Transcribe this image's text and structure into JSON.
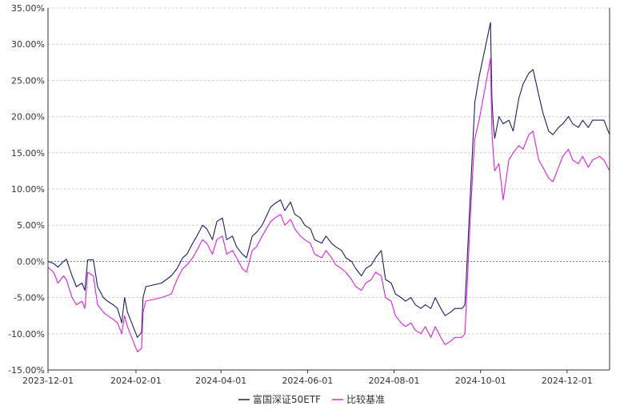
{
  "chart_data": {
    "type": "line",
    "title": "",
    "xlabel": "",
    "ylabel": "",
    "x_range": [
      "2023-12-01",
      "2024-12-31"
    ],
    "ylim": [
      -15,
      35
    ],
    "y_ticks": [
      -15,
      -10,
      -5,
      0,
      5,
      10,
      15,
      20,
      25,
      30,
      35
    ],
    "y_tick_labels": [
      "-15.00%",
      "-10.00%",
      "-5.00%",
      "0.00%",
      "5.00%",
      "10.00%",
      "15.00%",
      "20.00%",
      "25.00%",
      "30.00%",
      "35.00%"
    ],
    "x_ticks": [
      "2023-12-01",
      "2024-02-01",
      "2024-04-01",
      "2024-06-01",
      "2024-08-01",
      "2024-10-01",
      "2024-12-01"
    ],
    "grid": "horizontal dashed",
    "legend_position": "bottom-center",
    "series": [
      {
        "name": "富国深证50ETF",
        "color": "#1b1f6b",
        "points": [
          [
            "2023-12-01",
            0.0
          ],
          [
            "2023-12-05",
            -0.3
          ],
          [
            "2023-12-08",
            -0.8
          ],
          [
            "2023-12-12",
            0.0
          ],
          [
            "2023-12-14",
            0.3
          ],
          [
            "2023-12-18",
            -2.0
          ],
          [
            "2023-12-21",
            -3.5
          ],
          [
            "2023-12-25",
            -3.0
          ],
          [
            "2023-12-27",
            -4.0
          ],
          [
            "2023-12-29",
            0.2
          ],
          [
            "2024-01-02",
            0.2
          ],
          [
            "2024-01-05",
            -3.5
          ],
          [
            "2024-01-09",
            -5.0
          ],
          [
            "2024-01-12",
            -5.5
          ],
          [
            "2024-01-16",
            -6.0
          ],
          [
            "2024-01-19",
            -6.5
          ],
          [
            "2024-01-22",
            -8.5
          ],
          [
            "2024-01-24",
            -5.0
          ],
          [
            "2024-01-26",
            -7.0
          ],
          [
            "2024-01-30",
            -9.0
          ],
          [
            "2024-02-02",
            -10.5
          ],
          [
            "2024-02-05",
            -9.8
          ],
          [
            "2024-02-06",
            -5.0
          ],
          [
            "2024-02-08",
            -3.5
          ],
          [
            "2024-02-19",
            -3.0
          ],
          [
            "2024-02-26",
            -2.0
          ],
          [
            "2024-03-01",
            -1.0
          ],
          [
            "2024-03-05",
            0.5
          ],
          [
            "2024-03-08",
            1.0
          ],
          [
            "2024-03-12",
            2.5
          ],
          [
            "2024-03-15",
            3.5
          ],
          [
            "2024-03-19",
            5.0
          ],
          [
            "2024-03-22",
            4.5
          ],
          [
            "2024-03-26",
            3.0
          ],
          [
            "2024-03-29",
            5.5
          ],
          [
            "2024-04-02",
            6.0
          ],
          [
            "2024-04-05",
            3.0
          ],
          [
            "2024-04-09",
            3.5
          ],
          [
            "2024-04-12",
            2.0
          ],
          [
            "2024-04-16",
            1.0
          ],
          [
            "2024-04-19",
            0.5
          ],
          [
            "2024-04-23",
            3.5
          ],
          [
            "2024-04-26",
            4.0
          ],
          [
            "2024-04-30",
            5.0
          ],
          [
            "2024-05-06",
            7.5
          ],
          [
            "2024-05-09",
            8.0
          ],
          [
            "2024-05-13",
            8.5
          ],
          [
            "2024-05-16",
            7.0
          ],
          [
            "2024-05-20",
            8.2
          ],
          [
            "2024-05-23",
            6.5
          ],
          [
            "2024-05-27",
            6.0
          ],
          [
            "2024-05-30",
            5.0
          ],
          [
            "2024-06-03",
            4.5
          ],
          [
            "2024-06-06",
            3.0
          ],
          [
            "2024-06-11",
            2.5
          ],
          [
            "2024-06-14",
            3.5
          ],
          [
            "2024-06-18",
            2.5
          ],
          [
            "2024-06-21",
            2.0
          ],
          [
            "2024-06-25",
            1.5
          ],
          [
            "2024-06-28",
            0.5
          ],
          [
            "2024-07-02",
            0.0
          ],
          [
            "2024-07-05",
            -1.0
          ],
          [
            "2024-07-09",
            -2.0
          ],
          [
            "2024-07-12",
            -1.0
          ],
          [
            "2024-07-16",
            -0.5
          ],
          [
            "2024-07-19",
            0.5
          ],
          [
            "2024-07-23",
            1.5
          ],
          [
            "2024-07-26",
            -2.5
          ],
          [
            "2024-07-30",
            -3.0
          ],
          [
            "2024-08-02",
            -4.5
          ],
          [
            "2024-08-06",
            -5.0
          ],
          [
            "2024-08-09",
            -5.5
          ],
          [
            "2024-08-13",
            -5.0
          ],
          [
            "2024-08-16",
            -6.0
          ],
          [
            "2024-08-20",
            -6.5
          ],
          [
            "2024-08-23",
            -6.0
          ],
          [
            "2024-08-27",
            -6.5
          ],
          [
            "2024-08-30",
            -5.0
          ],
          [
            "2024-09-03",
            -6.5
          ],
          [
            "2024-09-06",
            -7.5
          ],
          [
            "2024-09-10",
            -7.0
          ],
          [
            "2024-09-13",
            -6.5
          ],
          [
            "2024-09-18",
            -6.5
          ],
          [
            "2024-09-20",
            -6.0
          ],
          [
            "2024-09-24",
            10.0
          ],
          [
            "2024-09-26",
            18.0
          ],
          [
            "2024-09-27",
            22.0
          ],
          [
            "2024-09-30",
            25.5
          ],
          [
            "2024-10-08",
            33.0
          ],
          [
            "2024-10-09",
            22.5
          ],
          [
            "2024-10-10",
            19.0
          ],
          [
            "2024-10-11",
            17.0
          ],
          [
            "2024-10-14",
            20.0
          ],
          [
            "2024-10-17",
            19.0
          ],
          [
            "2024-10-21",
            19.5
          ],
          [
            "2024-10-24",
            18.0
          ],
          [
            "2024-10-28",
            22.5
          ],
          [
            "2024-10-31",
            24.5
          ],
          [
            "2024-11-04",
            26.0
          ],
          [
            "2024-11-07",
            26.5
          ],
          [
            "2024-11-11",
            23.0
          ],
          [
            "2024-11-14",
            20.5
          ],
          [
            "2024-11-18",
            18.0
          ],
          [
            "2024-11-21",
            17.5
          ],
          [
            "2024-11-25",
            18.5
          ],
          [
            "2024-11-28",
            19.0
          ],
          [
            "2024-12-02",
            20.0
          ],
          [
            "2024-12-05",
            19.0
          ],
          [
            "2024-12-09",
            18.5
          ],
          [
            "2024-12-12",
            19.5
          ],
          [
            "2024-12-16",
            18.5
          ],
          [
            "2024-12-19",
            19.5
          ],
          [
            "2024-12-24",
            19.5
          ],
          [
            "2024-12-27",
            19.5
          ],
          [
            "2024-12-31",
            17.5
          ]
        ]
      },
      {
        "name": "比较基准",
        "color": "#e51ee0",
        "points": [
          [
            "2023-12-01",
            -0.8
          ],
          [
            "2023-12-05",
            -1.5
          ],
          [
            "2023-12-08",
            -3.0
          ],
          [
            "2023-12-12",
            -2.0
          ],
          [
            "2023-12-14",
            -2.5
          ],
          [
            "2023-12-18",
            -5.0
          ],
          [
            "2023-12-21",
            -6.0
          ],
          [
            "2023-12-25",
            -5.5
          ],
          [
            "2023-12-27",
            -6.5
          ],
          [
            "2023-12-29",
            -1.5
          ],
          [
            "2024-01-02",
            -2.0
          ],
          [
            "2024-01-05",
            -6.0
          ],
          [
            "2024-01-09",
            -7.0
          ],
          [
            "2024-01-12",
            -7.5
          ],
          [
            "2024-01-16",
            -8.0
          ],
          [
            "2024-01-19",
            -8.5
          ],
          [
            "2024-01-22",
            -10.0
          ],
          [
            "2024-01-24",
            -7.5
          ],
          [
            "2024-01-26",
            -9.0
          ],
          [
            "2024-01-30",
            -11.0
          ],
          [
            "2024-02-02",
            -12.5
          ],
          [
            "2024-02-05",
            -12.0
          ],
          [
            "2024-02-06",
            -7.0
          ],
          [
            "2024-02-08",
            -5.5
          ],
          [
            "2024-02-19",
            -5.0
          ],
          [
            "2024-02-26",
            -4.5
          ],
          [
            "2024-03-01",
            -2.5
          ],
          [
            "2024-03-05",
            -1.0
          ],
          [
            "2024-03-08",
            -0.5
          ],
          [
            "2024-03-12",
            0.5
          ],
          [
            "2024-03-15",
            1.5
          ],
          [
            "2024-03-19",
            3.0
          ],
          [
            "2024-03-22",
            2.5
          ],
          [
            "2024-03-26",
            1.0
          ],
          [
            "2024-03-29",
            3.0
          ],
          [
            "2024-04-02",
            3.5
          ],
          [
            "2024-04-05",
            1.0
          ],
          [
            "2024-04-09",
            1.5
          ],
          [
            "2024-04-12",
            0.5
          ],
          [
            "2024-04-16",
            -1.0
          ],
          [
            "2024-04-19",
            -1.5
          ],
          [
            "2024-04-23",
            1.5
          ],
          [
            "2024-04-26",
            2.0
          ],
          [
            "2024-04-30",
            3.5
          ],
          [
            "2024-05-06",
            5.5
          ],
          [
            "2024-05-09",
            6.0
          ],
          [
            "2024-05-13",
            6.5
          ],
          [
            "2024-05-16",
            5.0
          ],
          [
            "2024-05-20",
            5.8
          ],
          [
            "2024-05-23",
            4.5
          ],
          [
            "2024-05-27",
            3.5
          ],
          [
            "2024-05-30",
            3.0
          ],
          [
            "2024-06-03",
            2.5
          ],
          [
            "2024-06-06",
            1.0
          ],
          [
            "2024-06-11",
            0.5
          ],
          [
            "2024-06-14",
            1.5
          ],
          [
            "2024-06-18",
            0.5
          ],
          [
            "2024-06-21",
            -0.5
          ],
          [
            "2024-06-25",
            -1.0
          ],
          [
            "2024-06-28",
            -1.5
          ],
          [
            "2024-07-02",
            -2.5
          ],
          [
            "2024-07-05",
            -3.5
          ],
          [
            "2024-07-09",
            -4.0
          ],
          [
            "2024-07-12",
            -3.0
          ],
          [
            "2024-07-16",
            -2.5
          ],
          [
            "2024-07-19",
            -1.5
          ],
          [
            "2024-07-23",
            -2.0
          ],
          [
            "2024-07-26",
            -5.0
          ],
          [
            "2024-07-30",
            -5.5
          ],
          [
            "2024-08-02",
            -7.5
          ],
          [
            "2024-08-06",
            -8.5
          ],
          [
            "2024-08-09",
            -9.0
          ],
          [
            "2024-08-13",
            -8.5
          ],
          [
            "2024-08-16",
            -9.5
          ],
          [
            "2024-08-20",
            -10.0
          ],
          [
            "2024-08-23",
            -9.0
          ],
          [
            "2024-08-27",
            -10.5
          ],
          [
            "2024-08-30",
            -9.0
          ],
          [
            "2024-09-03",
            -10.5
          ],
          [
            "2024-09-06",
            -11.5
          ],
          [
            "2024-09-10",
            -11.0
          ],
          [
            "2024-09-13",
            -10.5
          ],
          [
            "2024-09-18",
            -10.5
          ],
          [
            "2024-09-20",
            -10.0
          ],
          [
            "2024-09-24",
            7.0
          ],
          [
            "2024-09-26",
            14.0
          ],
          [
            "2024-09-27",
            17.0
          ],
          [
            "2024-09-30",
            19.5
          ],
          [
            "2024-10-08",
            28.0
          ],
          [
            "2024-10-09",
            18.0
          ],
          [
            "2024-10-10",
            15.0
          ],
          [
            "2024-10-11",
            12.5
          ],
          [
            "2024-10-14",
            13.5
          ],
          [
            "2024-10-17",
            8.5
          ],
          [
            "2024-10-21",
            14.0
          ],
          [
            "2024-10-24",
            15.0
          ],
          [
            "2024-10-28",
            16.0
          ],
          [
            "2024-10-31",
            15.5
          ],
          [
            "2024-11-04",
            17.5
          ],
          [
            "2024-11-07",
            18.0
          ],
          [
            "2024-11-11",
            14.0
          ],
          [
            "2024-11-14",
            13.0
          ],
          [
            "2024-11-18",
            11.5
          ],
          [
            "2024-11-21",
            11.0
          ],
          [
            "2024-11-25",
            13.0
          ],
          [
            "2024-11-28",
            14.5
          ],
          [
            "2024-12-02",
            15.5
          ],
          [
            "2024-12-05",
            14.0
          ],
          [
            "2024-12-09",
            13.5
          ],
          [
            "2024-12-12",
            14.5
          ],
          [
            "2024-12-16",
            13.0
          ],
          [
            "2024-12-19",
            14.0
          ],
          [
            "2024-12-24",
            14.5
          ],
          [
            "2024-12-27",
            14.0
          ],
          [
            "2024-12-31",
            12.5
          ]
        ]
      }
    ]
  }
}
